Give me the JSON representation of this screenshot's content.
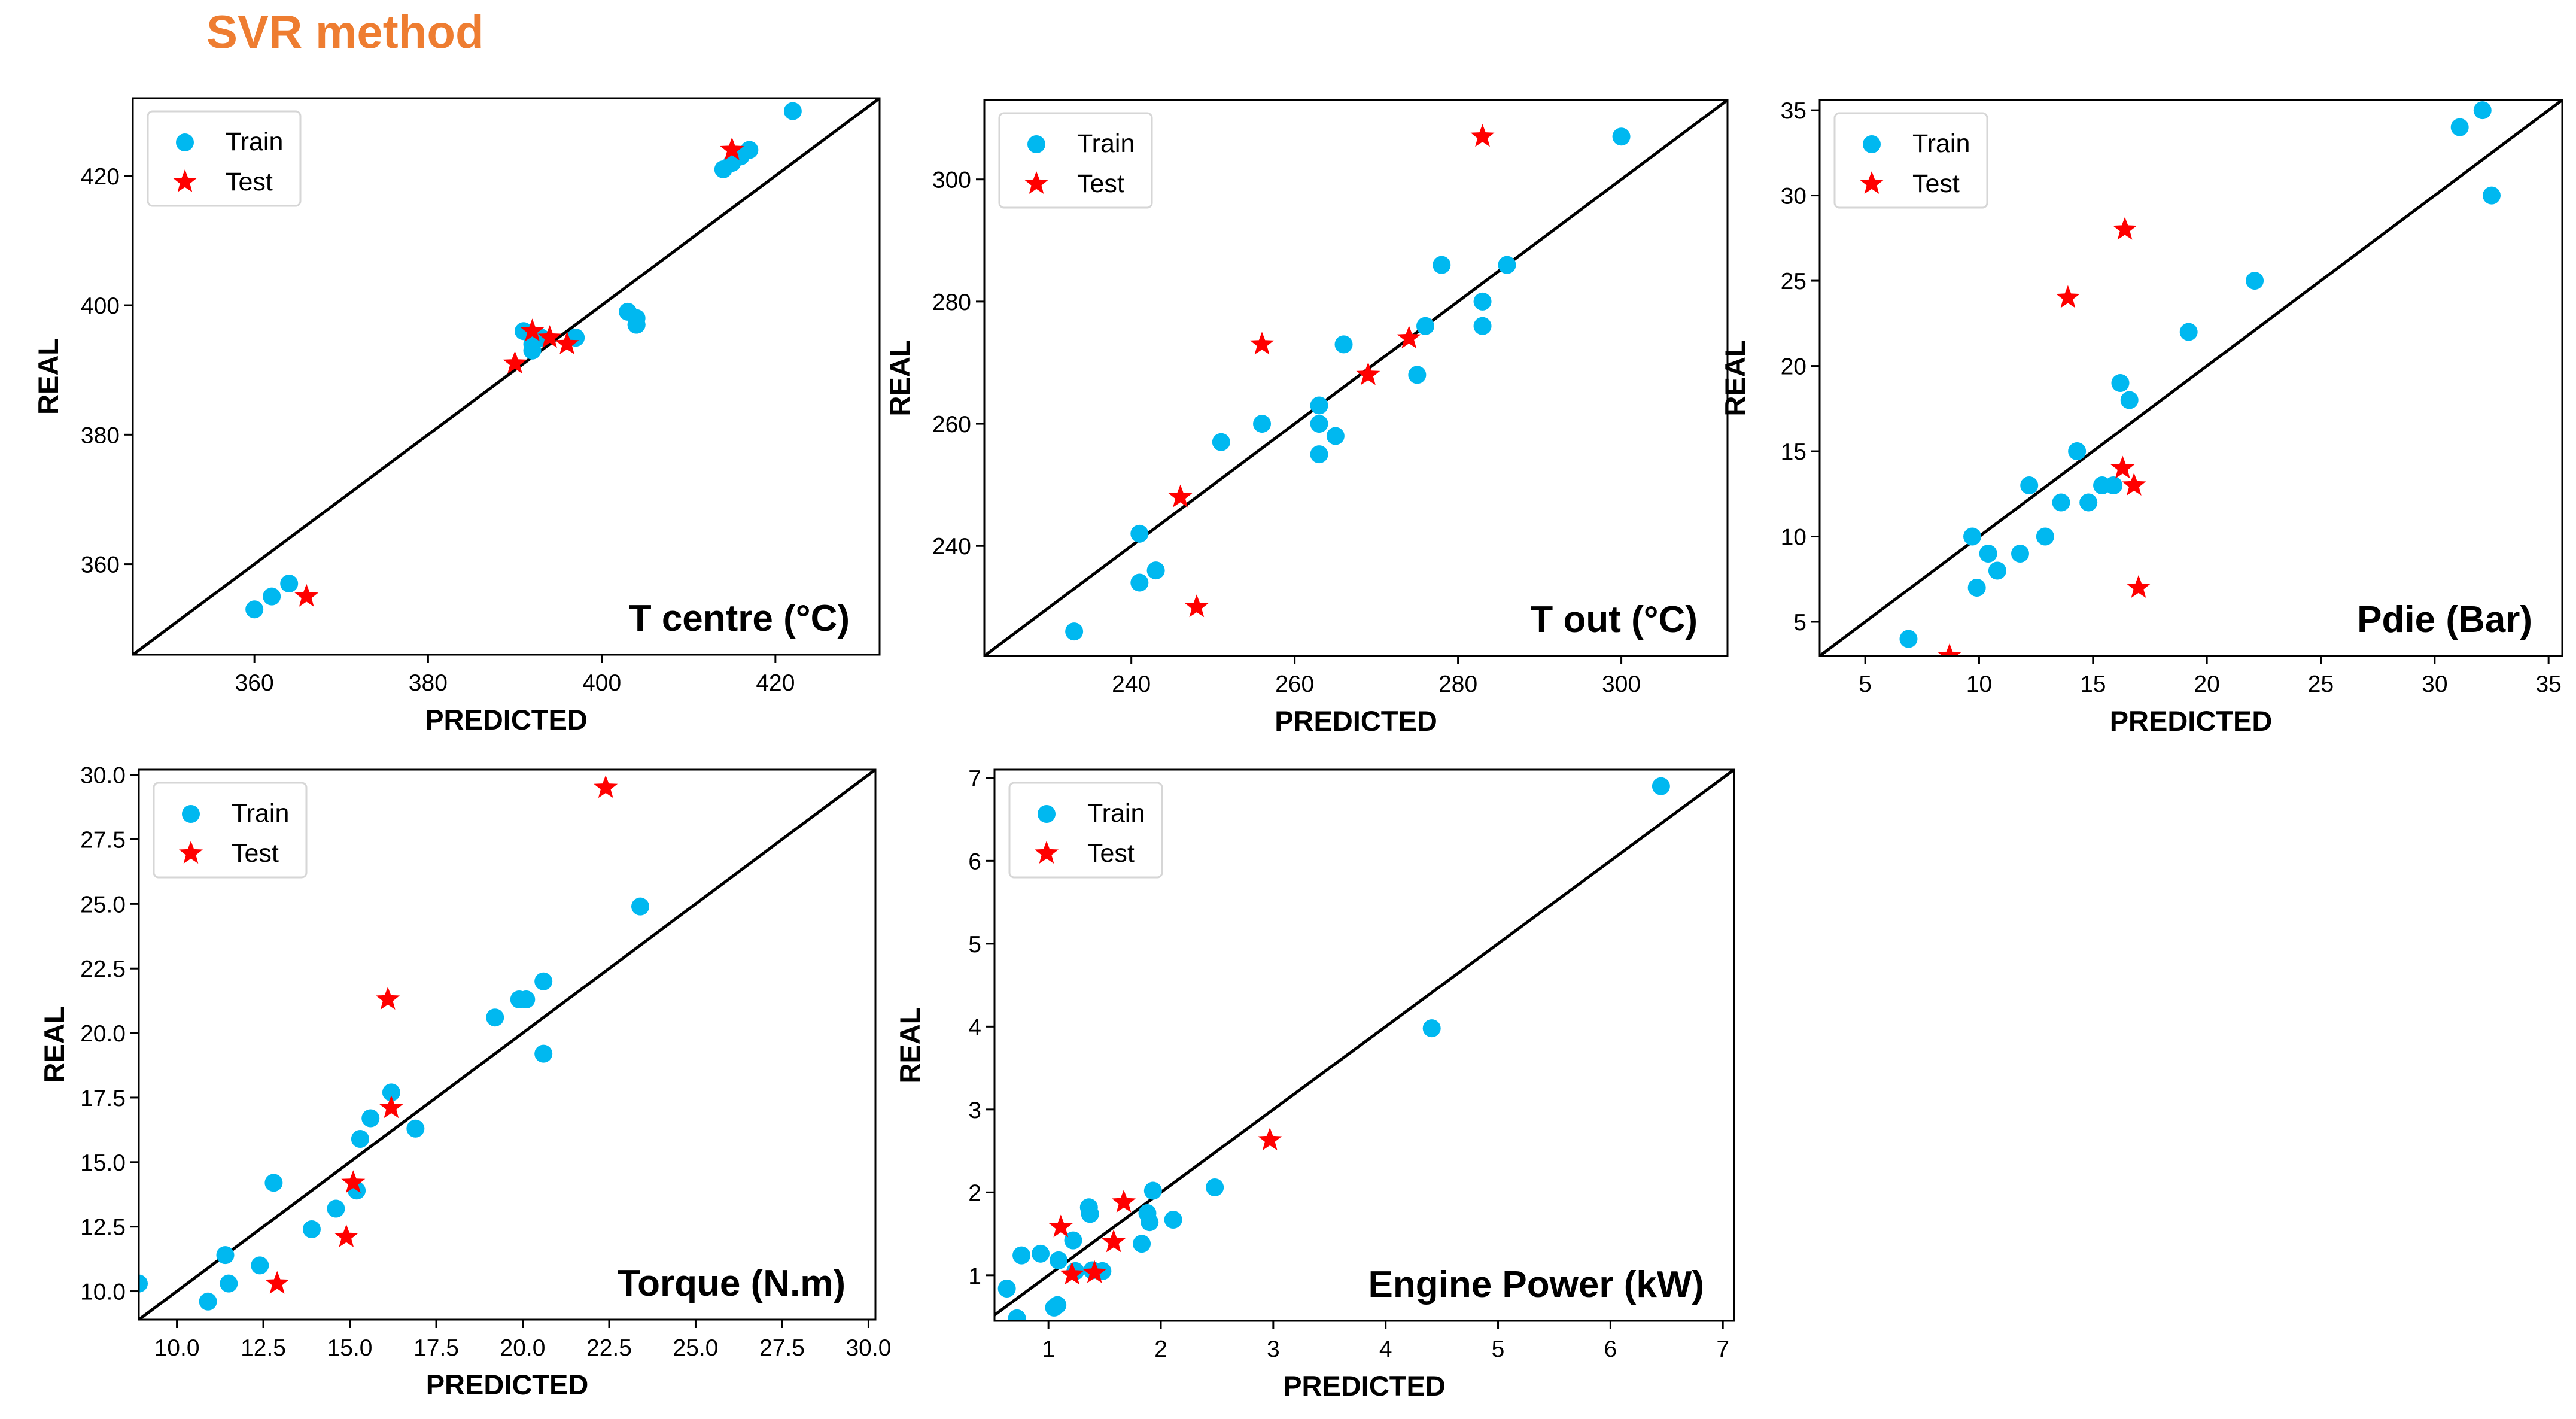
{
  "page": {
    "title": "SVR method"
  },
  "colors": {
    "train": "#00b8f0",
    "test": "#ff0000",
    "identity_line": "#000000",
    "axis": "#000000",
    "title_orange": "#ee7d31"
  },
  "chart_data": [
    {
      "id": "t-centre",
      "type": "scatter",
      "label": "T centre (°C)",
      "xlabel": "PREDICTED",
      "ylabel": "REAL",
      "xlim": [
        346,
        432
      ],
      "ylim": [
        346,
        432
      ],
      "xticks": [
        360,
        380,
        400,
        420
      ],
      "yticks": [
        360,
        380,
        400,
        420
      ],
      "tick_decimals": 0,
      "legend": {
        "train": "Train",
        "test": "Test"
      },
      "legend_position": "top-left",
      "series": [
        {
          "name": "Train",
          "points": [
            [
              360,
              353
            ],
            [
              362,
              355
            ],
            [
              364,
              357
            ],
            [
              391,
              396
            ],
            [
              392,
              394
            ],
            [
              392,
              393
            ],
            [
              393,
              395
            ],
            [
              397,
              395
            ],
            [
              397,
              395
            ],
            [
              403,
              399
            ],
            [
              404,
              397
            ],
            [
              404,
              398
            ],
            [
              404,
              397
            ],
            [
              414,
              421
            ],
            [
              415,
              422
            ],
            [
              416,
              423
            ],
            [
              417,
              424
            ],
            [
              422,
              430
            ]
          ]
        },
        {
          "name": "Test",
          "points": [
            [
              366,
              355
            ],
            [
              390,
              391
            ],
            [
              392,
              396
            ],
            [
              394,
              395
            ],
            [
              396,
              394
            ],
            [
              415,
              424
            ]
          ]
        }
      ]
    },
    {
      "id": "t-out",
      "type": "scatter",
      "label": "T out (°C)",
      "xlabel": "PREDICTED",
      "ylabel": "REAL",
      "xlim": [
        222,
        313
      ],
      "ylim": [
        222,
        313
      ],
      "xticks": [
        240,
        260,
        280,
        300
      ],
      "yticks": [
        240,
        260,
        280,
        300
      ],
      "tick_decimals": 0,
      "legend": {
        "train": "Train",
        "test": "Test"
      },
      "legend_position": "top-left",
      "series": [
        {
          "name": "Train",
          "points": [
            [
              233,
              226
            ],
            [
              241,
              242
            ],
            [
              241,
              234
            ],
            [
              243,
              236
            ],
            [
              251,
              257
            ],
            [
              256,
              260
            ],
            [
              263,
              263
            ],
            [
              263,
              260
            ],
            [
              263,
              255
            ],
            [
              265,
              258
            ],
            [
              266,
              273
            ],
            [
              275,
              268
            ],
            [
              276,
              276
            ],
            [
              278,
              286
            ],
            [
              283,
              280
            ],
            [
              283,
              276
            ],
            [
              286,
              286
            ],
            [
              300,
              307
            ]
          ]
        },
        {
          "name": "Test",
          "points": [
            [
              246,
              248
            ],
            [
              248,
              230
            ],
            [
              256,
              273
            ],
            [
              269,
              268
            ],
            [
              274,
              274
            ],
            [
              283,
              307
            ]
          ]
        }
      ]
    },
    {
      "id": "pdie",
      "type": "scatter",
      "label": "Pdie (Bar)",
      "xlabel": "PREDICTED",
      "ylabel": "REAL",
      "xlim": [
        3,
        35.6
      ],
      "ylim": [
        3,
        35.6
      ],
      "xticks": [
        5,
        10,
        15,
        20,
        25,
        30,
        35
      ],
      "yticks": [
        5,
        10,
        15,
        20,
        25,
        30,
        35
      ],
      "tick_decimals": 0,
      "legend": {
        "train": "Train",
        "test": "Test"
      },
      "legend_position": "top-left",
      "series": [
        {
          "name": "Train",
          "points": [
            [
              6.9,
              4
            ],
            [
              9.7,
              10
            ],
            [
              9.9,
              7
            ],
            [
              10.4,
              9
            ],
            [
              10.8,
              8
            ],
            [
              11.8,
              9
            ],
            [
              12.2,
              13
            ],
            [
              12.9,
              10
            ],
            [
              13.6,
              12
            ],
            [
              14.3,
              15
            ],
            [
              14.8,
              12
            ],
            [
              15.4,
              13
            ],
            [
              15.9,
              13
            ],
            [
              16.2,
              19
            ],
            [
              16.6,
              18
            ],
            [
              19.2,
              22
            ],
            [
              22.1,
              25
            ],
            [
              31.1,
              34
            ],
            [
              32.1,
              35
            ],
            [
              32.5,
              30
            ]
          ]
        },
        {
          "name": "Test",
          "points": [
            [
              8.7,
              3
            ],
            [
              13.9,
              24
            ],
            [
              16.3,
              14
            ],
            [
              16.4,
              28
            ],
            [
              16.8,
              13
            ],
            [
              17.0,
              7
            ]
          ]
        }
      ]
    },
    {
      "id": "torque",
      "type": "scatter",
      "label": "Torque (N.m)",
      "xlabel": "PREDICTED",
      "ylabel": "REAL",
      "xlim": [
        8.9,
        30.2
      ],
      "ylim": [
        8.9,
        30.2
      ],
      "xticks": [
        10.0,
        12.5,
        15.0,
        17.5,
        20.0,
        22.5,
        25.0,
        27.5,
        30.0
      ],
      "yticks": [
        10.0,
        12.5,
        15.0,
        17.5,
        20.0,
        22.5,
        25.0,
        27.5,
        30.0
      ],
      "tick_decimals": 1,
      "legend": {
        "train": "Train",
        "test": "Test"
      },
      "legend_position": "top-left",
      "series": [
        {
          "name": "Train",
          "points": [
            [
              8.9,
              10.3
            ],
            [
              10.9,
              9.6
            ],
            [
              11.4,
              11.4
            ],
            [
              11.5,
              10.3
            ],
            [
              12.4,
              11.0
            ],
            [
              12.8,
              14.2
            ],
            [
              13.9,
              12.4
            ],
            [
              14.6,
              13.2
            ],
            [
              15.2,
              13.9
            ],
            [
              15.3,
              15.9
            ],
            [
              15.6,
              16.7
            ],
            [
              16.2,
              17.7
            ],
            [
              16.9,
              16.3
            ],
            [
              19.2,
              20.6
            ],
            [
              19.9,
              21.3
            ],
            [
              20.1,
              21.3
            ],
            [
              20.6,
              22.0
            ],
            [
              20.6,
              19.2
            ],
            [
              23.4,
              24.9
            ]
          ]
        },
        {
          "name": "Test",
          "points": [
            [
              12.9,
              10.3
            ],
            [
              14.9,
              12.1
            ],
            [
              15.1,
              14.2
            ],
            [
              16.1,
              21.3
            ],
            [
              16.2,
              17.1
            ],
            [
              22.4,
              29.5
            ]
          ]
        }
      ]
    },
    {
      "id": "engine-power",
      "type": "scatter",
      "label": "Engine Power (kW)",
      "xlabel": "PREDICTED",
      "ylabel": "REAL",
      "xlim": [
        0.52,
        7.1
      ],
      "ylim": [
        0.45,
        7.1
      ],
      "xticks": [
        1,
        2,
        3,
        4,
        5,
        6,
        7
      ],
      "yticks": [
        1,
        2,
        3,
        4,
        5,
        6,
        7
      ],
      "tick_decimals": 0,
      "legend": {
        "train": "Train",
        "test": "Test"
      },
      "legend_position": "top-left",
      "series": [
        {
          "name": "Train",
          "points": [
            [
              0.63,
              0.84
            ],
            [
              0.72,
              0.48
            ],
            [
              0.76,
              1.24
            ],
            [
              0.93,
              1.26
            ],
            [
              1.05,
              0.61
            ],
            [
              1.08,
              0.64
            ],
            [
              1.09,
              1.18
            ],
            [
              1.22,
              1.42
            ],
            [
              1.24,
              1.05
            ],
            [
              1.36,
              1.82
            ],
            [
              1.37,
              1.74
            ],
            [
              1.39,
              1.06
            ],
            [
              1.48,
              1.05
            ],
            [
              1.83,
              1.38
            ],
            [
              1.88,
              1.75
            ],
            [
              1.9,
              1.64
            ],
            [
              1.93,
              2.02
            ],
            [
              2.11,
              1.67
            ],
            [
              2.48,
              2.06
            ],
            [
              4.41,
              3.98
            ],
            [
              6.45,
              6.9
            ]
          ]
        },
        {
          "name": "Test",
          "points": [
            [
              1.11,
              1.58
            ],
            [
              1.21,
              1.01
            ],
            [
              1.41,
              1.03
            ],
            [
              1.58,
              1.4
            ],
            [
              1.67,
              1.88
            ],
            [
              2.97,
              2.63
            ]
          ]
        }
      ]
    }
  ]
}
